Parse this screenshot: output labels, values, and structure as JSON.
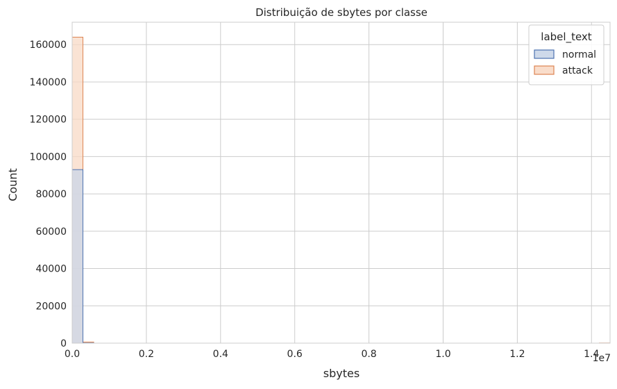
{
  "chart_data": {
    "type": "histogram",
    "title": "Distribuição de sbytes por classe",
    "xlabel": "sbytes",
    "ylabel": "Count",
    "x_offset_text": "1e7",
    "xlim": [
      0,
      14500000
    ],
    "ylim": [
      0,
      172000
    ],
    "x_ticks": [
      0,
      2000000,
      4000000,
      6000000,
      8000000,
      10000000,
      12000000,
      14000000
    ],
    "x_tick_labels": [
      "0.0",
      "0.2",
      "0.4",
      "0.6",
      "0.8",
      "1.0",
      "1.2",
      "1.4"
    ],
    "y_ticks": [
      0,
      20000,
      40000,
      60000,
      80000,
      100000,
      120000,
      140000,
      160000
    ],
    "y_tick_labels": [
      "0",
      "20000",
      "40000",
      "60000",
      "80000",
      "100000",
      "120000",
      "140000",
      "160000"
    ],
    "grid": true,
    "legend_title": "label_text",
    "legend_position": "top-right",
    "bin_width": 290000,
    "series": [
      {
        "name": "normal",
        "color": "#4c72b0",
        "fill": "#c9d5e8",
        "bins": [
          {
            "x0": 0,
            "x1": 290000,
            "count": 93000
          },
          {
            "x0": 290000,
            "x1": 580000,
            "count": 150
          }
        ]
      },
      {
        "name": "attack",
        "color": "#dd8452",
        "fill": "#f8d9c5",
        "bins": [
          {
            "x0": 0,
            "x1": 290000,
            "count": 164000
          },
          {
            "x0": 290000,
            "x1": 580000,
            "count": 600
          },
          {
            "x0": 14210000,
            "x1": 14500000,
            "count": 80
          }
        ]
      }
    ]
  }
}
